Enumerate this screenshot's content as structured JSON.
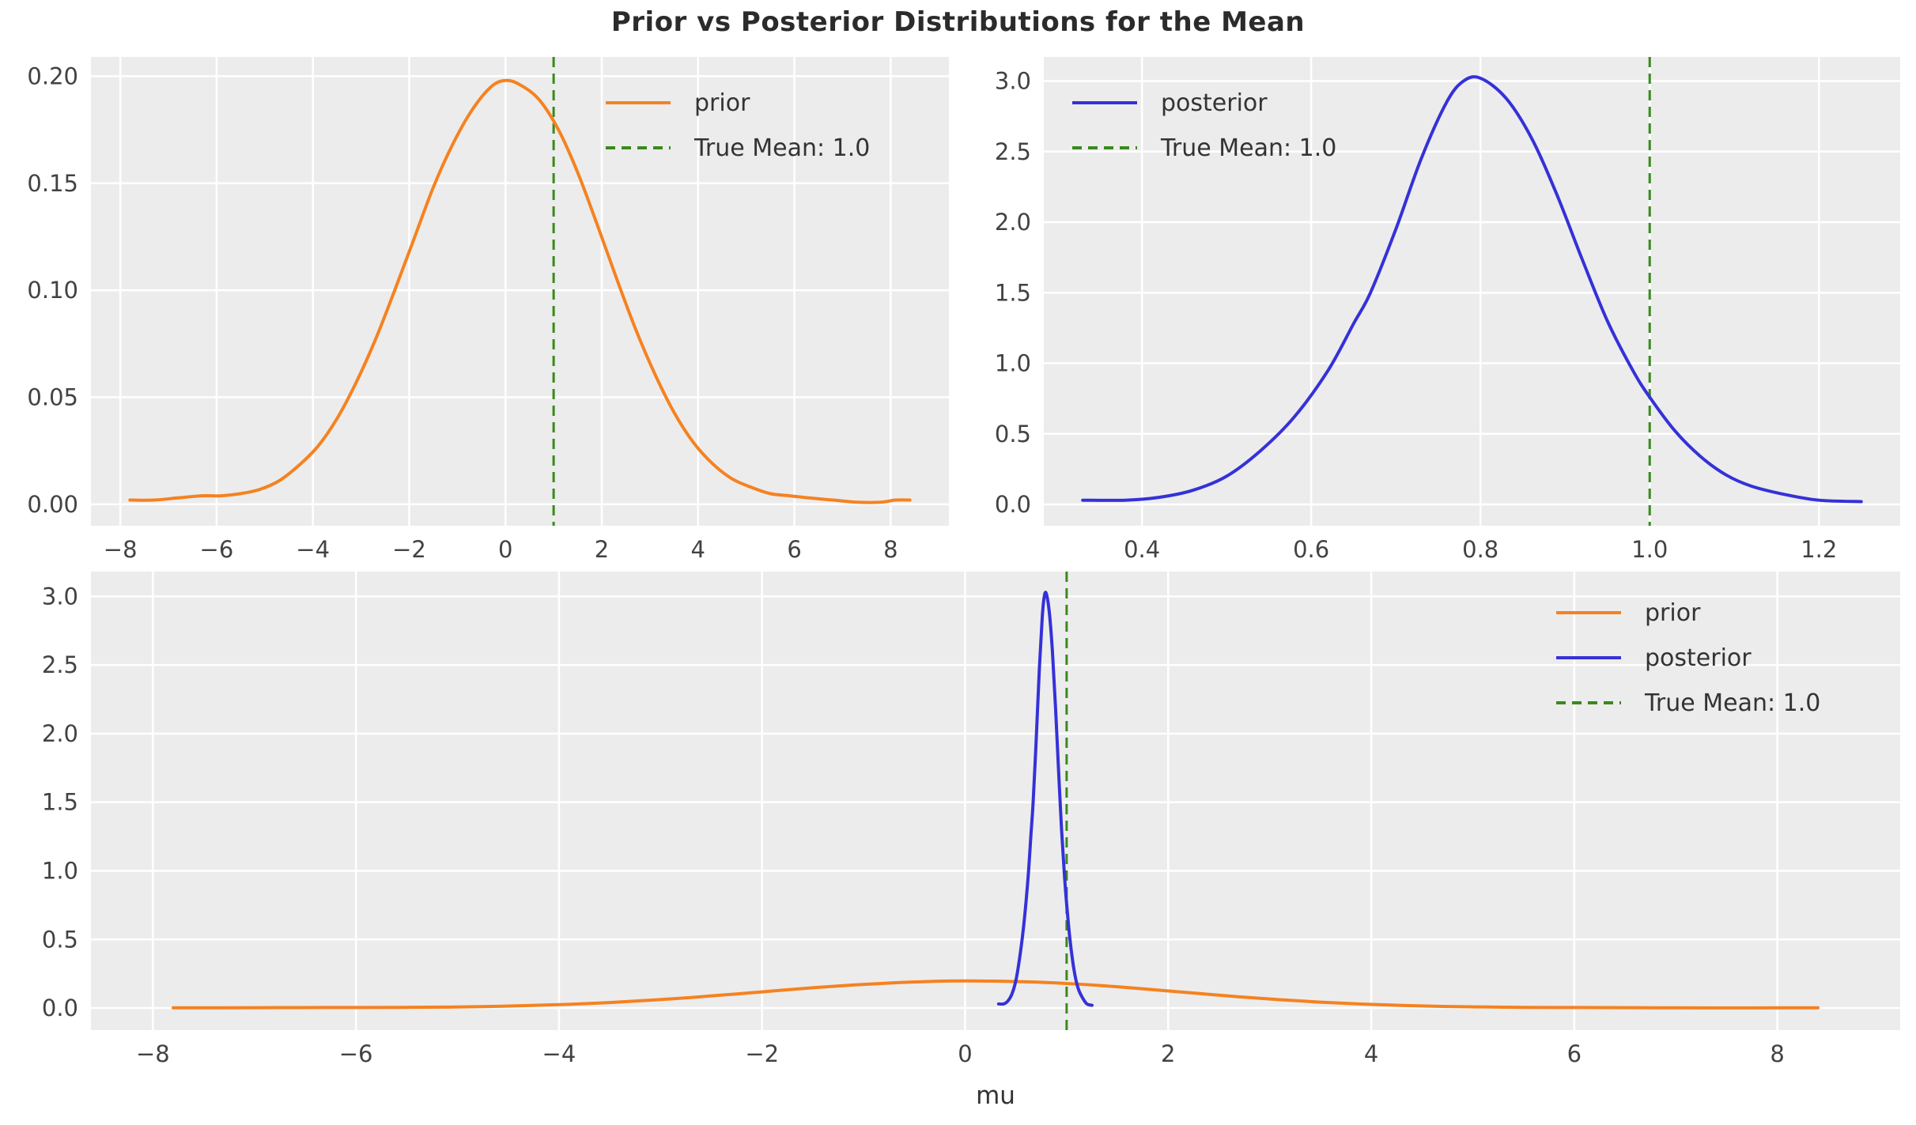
{
  "title": "Prior vs Posterior Distributions for the Mean",
  "colors": {
    "orange": "#f58220",
    "blue": "#3531d8",
    "green": "#398a1c",
    "axes_bg": "#ececec",
    "grid": "#ffffff",
    "tick_label": "#424242",
    "legend_text": "#333333",
    "title_text": "#2b2b2b"
  },
  "curves": {
    "prior": {
      "x": [
        -7.8,
        -7.3,
        -6.8,
        -6.3,
        -5.9,
        -5.5,
        -5.1,
        -4.7,
        -4.3,
        -3.9,
        -3.5,
        -3.1,
        -2.7,
        -2.3,
        -1.9,
        -1.5,
        -1.1,
        -0.7,
        -0.3,
        0.0,
        0.3,
        0.7,
        1.1,
        1.5,
        1.9,
        2.3,
        2.7,
        3.1,
        3.5,
        3.9,
        4.3,
        4.7,
        5.1,
        5.5,
        5.9,
        6.3,
        6.8,
        7.3,
        7.8,
        8.1,
        8.4
      ],
      "y": [
        0.002,
        0.002,
        0.003,
        0.004,
        0.004,
        0.005,
        0.007,
        0.011,
        0.018,
        0.027,
        0.04,
        0.057,
        0.077,
        0.1,
        0.124,
        0.148,
        0.168,
        0.184,
        0.195,
        0.198,
        0.196,
        0.189,
        0.175,
        0.155,
        0.131,
        0.106,
        0.082,
        0.061,
        0.043,
        0.029,
        0.019,
        0.012,
        0.008,
        0.005,
        0.004,
        0.003,
        0.002,
        0.001,
        0.001,
        0.002,
        0.002
      ]
    },
    "posterior": {
      "x": [
        0.33,
        0.38,
        0.42,
        0.46,
        0.5,
        0.54,
        0.58,
        0.62,
        0.65,
        0.67,
        0.7,
        0.73,
        0.76,
        0.78,
        0.8,
        0.83,
        0.86,
        0.89,
        0.92,
        0.95,
        0.98,
        1.0,
        1.03,
        1.06,
        1.09,
        1.12,
        1.16,
        1.2,
        1.25
      ],
      "y": [
        0.03,
        0.03,
        0.05,
        0.1,
        0.2,
        0.38,
        0.62,
        0.95,
        1.28,
        1.5,
        1.95,
        2.45,
        2.85,
        3.0,
        3.02,
        2.88,
        2.6,
        2.2,
        1.74,
        1.3,
        0.95,
        0.76,
        0.52,
        0.34,
        0.21,
        0.13,
        0.07,
        0.03,
        0.02
      ]
    }
  },
  "chart_data": [
    {
      "id": "top_left",
      "type": "line",
      "title": "",
      "xlabel": "",
      "ylabel": "",
      "x_range": [
        -8.61,
        9.21
      ],
      "y_range": [
        -0.01,
        0.209
      ],
      "x_ticks": {
        "values": [
          -8,
          -6,
          -4,
          -2,
          0,
          2,
          4,
          6,
          8
        ],
        "labels": [
          "−8",
          "−6",
          "−4",
          "−2",
          "0",
          "2",
          "4",
          "6",
          "8"
        ]
      },
      "y_ticks": {
        "values": [
          0.0,
          0.05,
          0.1,
          0.15,
          0.2
        ],
        "labels": [
          "0.00",
          "0.05",
          "0.10",
          "0.15",
          "0.20"
        ]
      },
      "grid": true,
      "series": [
        {
          "name": "prior",
          "curve_key": "prior",
          "color_key": "orange",
          "dash": false
        }
      ],
      "vline": {
        "x": 1.0,
        "color_key": "green",
        "label": "True Mean: 1.0"
      },
      "legend": {
        "position": "upper-left-of-center",
        "entries": [
          {
            "label": "prior",
            "color_key": "orange",
            "dash": false
          },
          {
            "label": "True Mean: 1.0",
            "color_key": "green",
            "dash": true
          }
        ]
      }
    },
    {
      "id": "top_right",
      "type": "line",
      "title": "",
      "xlabel": "",
      "ylabel": "",
      "x_range": [
        0.284,
        1.296
      ],
      "y_range": [
        -0.151,
        3.171
      ],
      "x_ticks": {
        "values": [
          0.4,
          0.6,
          0.8,
          1.0,
          1.2
        ],
        "labels": [
          "0.4",
          "0.6",
          "0.8",
          "1.0",
          "1.2"
        ]
      },
      "y_ticks": {
        "values": [
          0.0,
          0.5,
          1.0,
          1.5,
          2.0,
          2.5,
          3.0
        ],
        "labels": [
          "0.0",
          "0.5",
          "1.0",
          "1.5",
          "2.0",
          "2.5",
          "3.0"
        ]
      },
      "grid": true,
      "series": [
        {
          "name": "posterior",
          "curve_key": "posterior",
          "color_key": "blue",
          "dash": false
        }
      ],
      "vline": {
        "x": 1.0,
        "color_key": "green",
        "label": "True Mean: 1.0"
      },
      "legend": {
        "position": "upper-left",
        "entries": [
          {
            "label": "posterior",
            "color_key": "blue",
            "dash": false
          },
          {
            "label": "True Mean: 1.0",
            "color_key": "green",
            "dash": true
          }
        ]
      }
    },
    {
      "id": "bottom",
      "type": "line",
      "title": "",
      "xlabel": "mu",
      "ylabel": "",
      "x_range": [
        -8.61,
        9.21
      ],
      "y_range": [
        -0.161,
        3.181
      ],
      "x_ticks": {
        "values": [
          -8,
          -6,
          -4,
          -2,
          0,
          2,
          4,
          6,
          8
        ],
        "labels": [
          "−8",
          "−6",
          "−4",
          "−2",
          "0",
          "2",
          "4",
          "6",
          "8"
        ]
      },
      "y_ticks": {
        "values": [
          0.0,
          0.5,
          1.0,
          1.5,
          2.0,
          2.5,
          3.0
        ],
        "labels": [
          "0.0",
          "0.5",
          "1.0",
          "1.5",
          "2.0",
          "2.5",
          "3.0"
        ]
      },
      "grid": true,
      "series": [
        {
          "name": "prior",
          "curve_key": "prior",
          "color_key": "orange",
          "dash": false
        },
        {
          "name": "posterior",
          "curve_key": "posterior",
          "color_key": "blue",
          "dash": false
        }
      ],
      "vline": {
        "x": 1.0,
        "color_key": "green",
        "label": "True Mean: 1.0"
      },
      "legend": {
        "position": "upper-right",
        "entries": [
          {
            "label": "prior",
            "color_key": "orange",
            "dash": false
          },
          {
            "label": "posterior",
            "color_key": "blue",
            "dash": false
          },
          {
            "label": "True Mean: 1.0",
            "color_key": "green",
            "dash": true
          }
        ]
      }
    }
  ]
}
